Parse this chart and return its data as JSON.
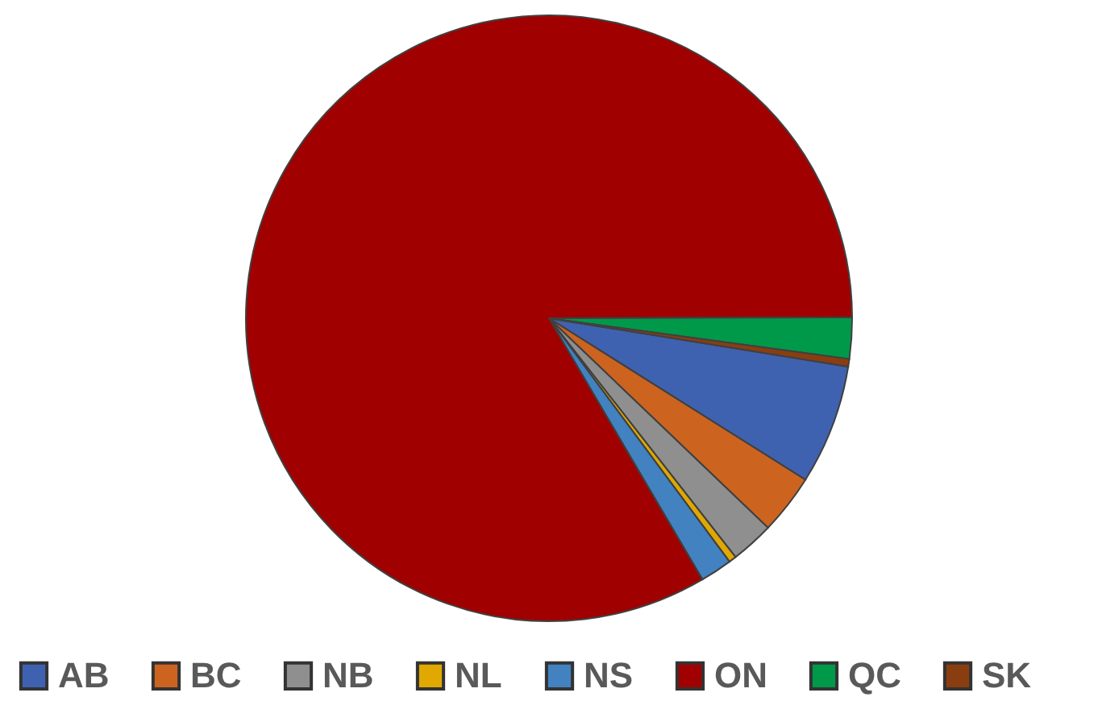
{
  "chart_data": {
    "type": "pie",
    "categories": [
      "AB",
      "BC",
      "NB",
      "NL",
      "NS",
      "ON",
      "QC",
      "SK"
    ],
    "values": [
      6.4,
      3.2,
      2.3,
      0.4,
      1.7,
      83.4,
      2.2,
      0.4
    ],
    "colors": [
      "#3f62b0",
      "#cc6420",
      "#8f8f8f",
      "#e0a800",
      "#4282c0",
      "#a00000",
      "#00994a",
      "#8a3e10"
    ],
    "legend": "bottom"
  }
}
